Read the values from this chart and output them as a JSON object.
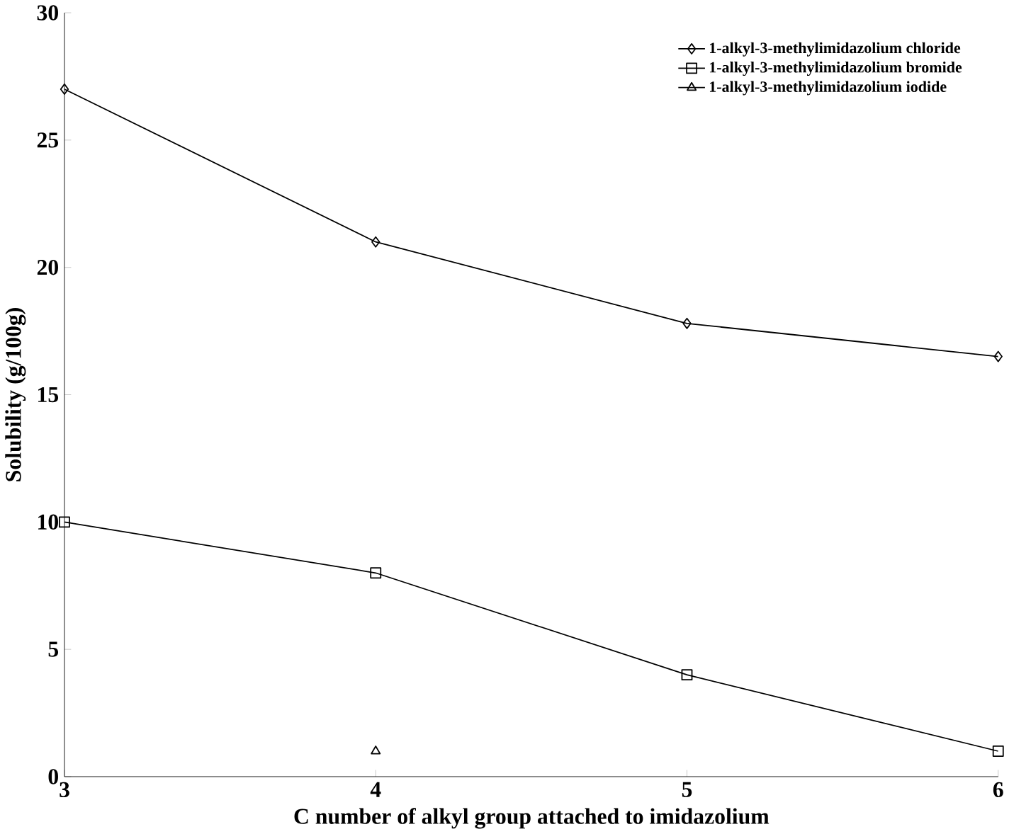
{
  "chart_data": {
    "type": "line",
    "xlabel": "C number of  alkyl group attached to imidazolium",
    "ylabel": "Solubility (g/100g)",
    "x": [
      3,
      4,
      5,
      6
    ],
    "xlim": [
      3,
      6
    ],
    "xticks": [
      3,
      4,
      5,
      6
    ],
    "ylim": [
      0,
      30
    ],
    "yticks": [
      0,
      5,
      10,
      15,
      20,
      25,
      30
    ],
    "grid": false,
    "legend": "top right",
    "series": [
      {
        "name": "1-alkyl-3-methylimidazolium chloride",
        "color": "#000000",
        "marker": "diamond",
        "values": [
          27,
          21,
          17.8,
          16.5
        ]
      },
      {
        "name": "1-alkyl-3-methylimidazolium bromide",
        "color": "#000000",
        "marker": "square",
        "values": [
          10,
          8,
          4,
          1
        ]
      },
      {
        "name": "1-alkyl-3-methylimidazolium iodide",
        "color": "#000000",
        "marker": "triangle",
        "values": [
          null,
          1,
          null,
          null
        ]
      }
    ]
  }
}
